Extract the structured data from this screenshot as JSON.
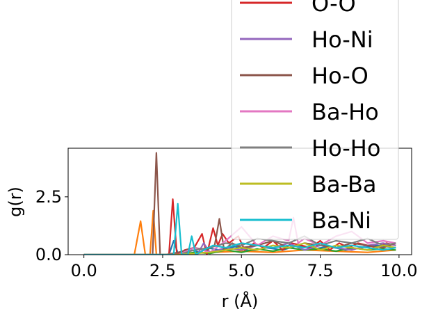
{
  "chart_data": {
    "type": "line",
    "xlabel": "r (Å)",
    "ylabel": "g(r)",
    "xlim": [
      -0.5,
      10.4
    ],
    "ylim": [
      0,
      4.6
    ],
    "xticks": [
      0.0,
      2.5,
      5.0,
      7.5,
      10.0
    ],
    "xtick_labels": [
      "0.0",
      "2.5",
      "5.0",
      "7.5",
      "10.0"
    ],
    "yticks": [
      0.0,
      2.5
    ],
    "ytick_labels": [
      "0.0",
      "2.5"
    ],
    "grid": false,
    "legend_placement": "upper-right (extends above plot)",
    "series": [
      {
        "name": "",
        "color": "#1f77b4",
        "x": [
          0,
          1,
          2,
          2.7,
          2.85,
          3.0,
          3.2,
          3.4,
          3.7,
          3.9,
          4.3,
          4.8,
          5.3,
          5.8,
          6.3,
          6.8,
          7.3,
          7.8,
          8.3,
          8.8,
          9.3,
          9.9
        ],
        "y": [
          0,
          0,
          0,
          0,
          0.6,
          0,
          0.05,
          0.2,
          0.1,
          0.3,
          0.2,
          0.35,
          0.15,
          0.3,
          0.2,
          0.4,
          0.25,
          0.35,
          0.2,
          0.3,
          0.4,
          0.3
        ]
      },
      {
        "name": "",
        "color": "#ff7f0e",
        "x": [
          0,
          1,
          1.6,
          1.8,
          1.95,
          2.1,
          2.2,
          2.3,
          2.5,
          3,
          4,
          5,
          6,
          7,
          8,
          9,
          9.9
        ],
        "y": [
          0,
          0,
          0,
          1.45,
          0,
          0,
          1.9,
          0,
          0,
          0.05,
          0.1,
          0.15,
          0.1,
          0.2,
          0.15,
          0.1,
          0.2
        ]
      },
      {
        "name": "",
        "color": "#2ca02c",
        "x": [
          0,
          1,
          2,
          3,
          3.5,
          4,
          4.5,
          5,
          5.5,
          6,
          6.5,
          7,
          7.5,
          8,
          8.5,
          9,
          9.5,
          9.9
        ],
        "y": [
          0,
          0,
          0,
          0,
          0.1,
          0.05,
          0.2,
          0.1,
          0.25,
          0.15,
          0.3,
          0.2,
          0.25,
          0.15,
          0.3,
          0.2,
          0.25,
          0.2
        ]
      },
      {
        "name": "O-O",
        "color": "#d62728",
        "x": [
          0,
          2.5,
          2.7,
          2.82,
          2.95,
          3.2,
          3.5,
          3.75,
          3.9,
          4.1,
          4.25,
          4.4,
          4.6,
          4.9,
          5.1,
          5.4,
          5.7,
          6.0,
          6.3,
          6.6,
          6.9,
          7.2,
          7.5,
          7.8,
          8.1,
          8.4,
          8.7,
          9.0,
          9.3,
          9.6,
          9.9
        ],
        "y": [
          0,
          0,
          0,
          2.4,
          0,
          0.2,
          0.3,
          0.9,
          0,
          1.15,
          0.4,
          0.9,
          0.5,
          0.8,
          0.2,
          0.5,
          0.3,
          0.6,
          0.2,
          0.5,
          0.4,
          0.3,
          0.6,
          0.2,
          0.5,
          0.3,
          0.5,
          0.4,
          0.3,
          0.5,
          0.4
        ]
      },
      {
        "name": "Ho-Ni",
        "color": "#9467bd",
        "x": [
          0,
          3,
          3.6,
          3.8,
          4,
          4.5,
          5,
          5.5,
          6,
          6.5,
          7,
          7.5,
          8,
          8.5,
          9,
          9.5,
          9.9
        ],
        "y": [
          0,
          0,
          0,
          0.5,
          0.1,
          0.3,
          0.2,
          0.4,
          0.3,
          0.5,
          0.2,
          0.4,
          0.3,
          0.2,
          0.4,
          0.5,
          0.4
        ]
      },
      {
        "name": "Ho-O",
        "color": "#8c564b",
        "x": [
          0,
          2.0,
          2.18,
          2.3,
          2.42,
          2.6,
          3.0,
          3.5,
          3.9,
          4.15,
          4.3,
          4.45,
          4.7,
          5.0,
          5.5,
          6.0,
          6.5,
          7.0,
          7.5,
          8.0,
          8.5,
          9.0,
          9.5,
          9.9
        ],
        "y": [
          0,
          0,
          0,
          4.4,
          0,
          0,
          0.1,
          0.3,
          0.2,
          0.4,
          1.55,
          0.2,
          0.5,
          0.3,
          0.4,
          0.6,
          0.3,
          0.5,
          0.4,
          0.3,
          0.5,
          0.4,
          0.3,
          0.5
        ]
      },
      {
        "name": "Ba-Ho",
        "color": "#e377c2",
        "x": [
          0,
          3,
          3.5,
          4,
          4.5,
          5,
          5.5,
          6,
          6.5,
          6.65,
          6.8,
          7,
          7.5,
          8,
          8.5,
          9,
          9.5,
          9.9
        ],
        "y": [
          0,
          0,
          0.3,
          0.1,
          0.6,
          1.2,
          0.4,
          0.8,
          0.6,
          1.6,
          0.5,
          0.7,
          0.4,
          0.8,
          1.0,
          0.5,
          0.6,
          0.5
        ]
      },
      {
        "name": "Ho-Ho",
        "color": "#7f7f7f",
        "x": [
          0,
          3,
          3.5,
          4,
          4.5,
          5,
          5.5,
          6,
          6.5,
          7,
          7.5,
          8,
          8.5,
          9,
          9.5,
          9.9
        ],
        "y": [
          0,
          0,
          0.2,
          0.3,
          0.5,
          0.4,
          0.7,
          0.6,
          0.5,
          0.8,
          0.4,
          0.6,
          0.5,
          0.7,
          0.4,
          0.5
        ]
      },
      {
        "name": "Ba-Ba",
        "color": "#bcbd22",
        "x": [
          0,
          3,
          4,
          4.5,
          5,
          5.5,
          6,
          6.5,
          7,
          7.5,
          8,
          8.5,
          9,
          9.5,
          9.9
        ],
        "y": [
          0,
          0,
          0.1,
          0.2,
          0.3,
          0.2,
          0.4,
          0.3,
          0.5,
          0.2,
          0.4,
          0.3,
          0.2,
          0.4,
          0.3
        ]
      },
      {
        "name": "Ba-Ni",
        "color": "#17becf",
        "x": [
          0,
          2.85,
          2.98,
          3.1,
          3.3,
          3.42,
          3.55,
          3.8,
          4.1,
          4.5,
          5.0,
          5.5,
          6.0,
          6.5,
          7.0,
          7.5,
          8.0,
          8.5,
          9.0,
          9.5,
          9.9
        ],
        "y": [
          0,
          0,
          2.2,
          0,
          0,
          0.8,
          0,
          0.2,
          0.4,
          0.3,
          0.5,
          0.4,
          0.3,
          0.4,
          0.3,
          0.5,
          0.3,
          0.4,
          0.3,
          0.2,
          0.3
        ]
      }
    ]
  }
}
